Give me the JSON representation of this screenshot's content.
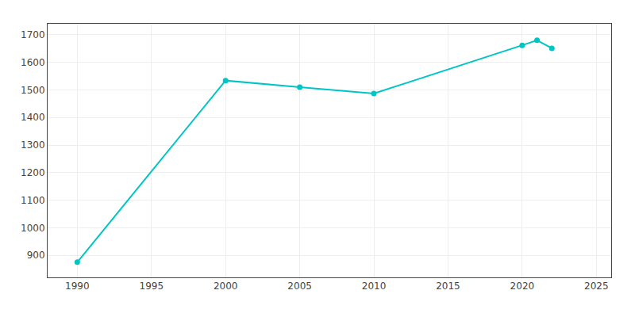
{
  "chart_data": {
    "type": "line",
    "x": [
      1990,
      2000,
      2005,
      2010,
      2020,
      2021,
      2022
    ],
    "values": [
      875,
      1534,
      1510,
      1487,
      1662,
      1680,
      1651
    ],
    "color": "#00C5C5",
    "marker": "circle",
    "line_style": "solid",
    "xlim": [
      1988,
      2026
    ],
    "ylim": [
      820,
      1740
    ],
    "xticks": [
      1990,
      1995,
      2000,
      2005,
      2010,
      2015,
      2020,
      2025
    ],
    "yticks": [
      900,
      1000,
      1100,
      1200,
      1300,
      1400,
      1500,
      1600,
      1700
    ],
    "grid": true
  }
}
